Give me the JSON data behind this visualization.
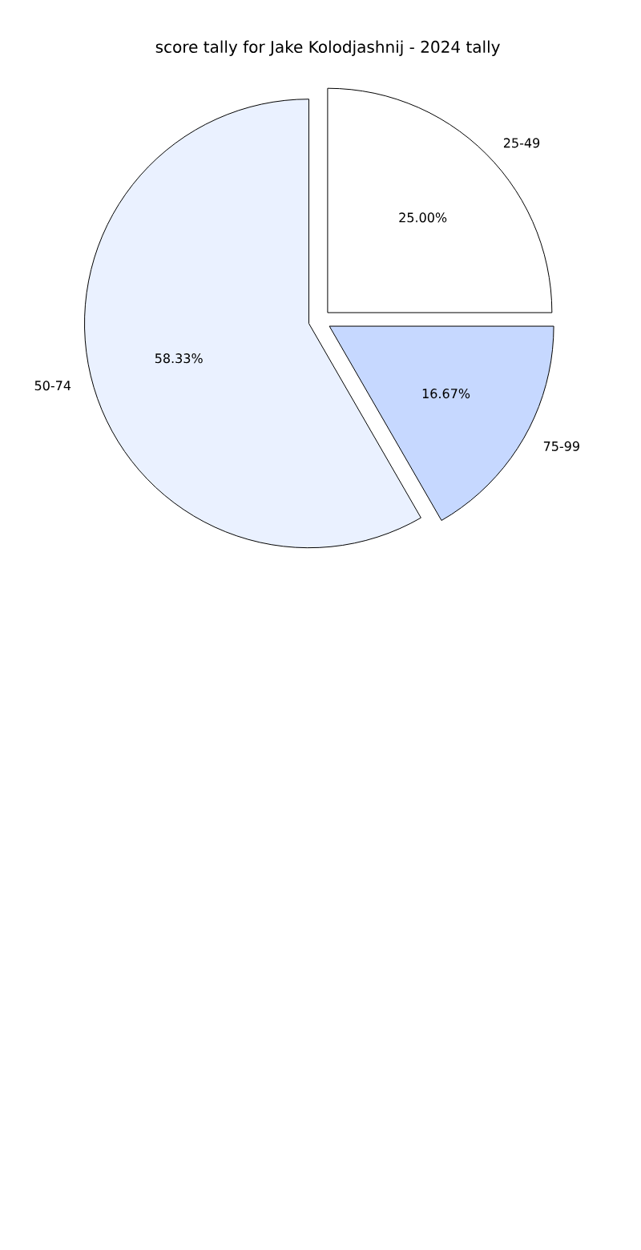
{
  "chart_data": {
    "type": "pie",
    "title": "score tally for Jake Kolodjashnij - 2024 tally",
    "categories": [
      "25-49",
      "75-99",
      "50-74"
    ],
    "values": [
      25.0,
      16.67,
      58.33
    ],
    "value_labels": [
      "25.00%",
      "16.67%",
      "58.33%"
    ],
    "colors": [
      "#ffffff",
      "#c6d8ff",
      "#eaf1ff"
    ]
  }
}
